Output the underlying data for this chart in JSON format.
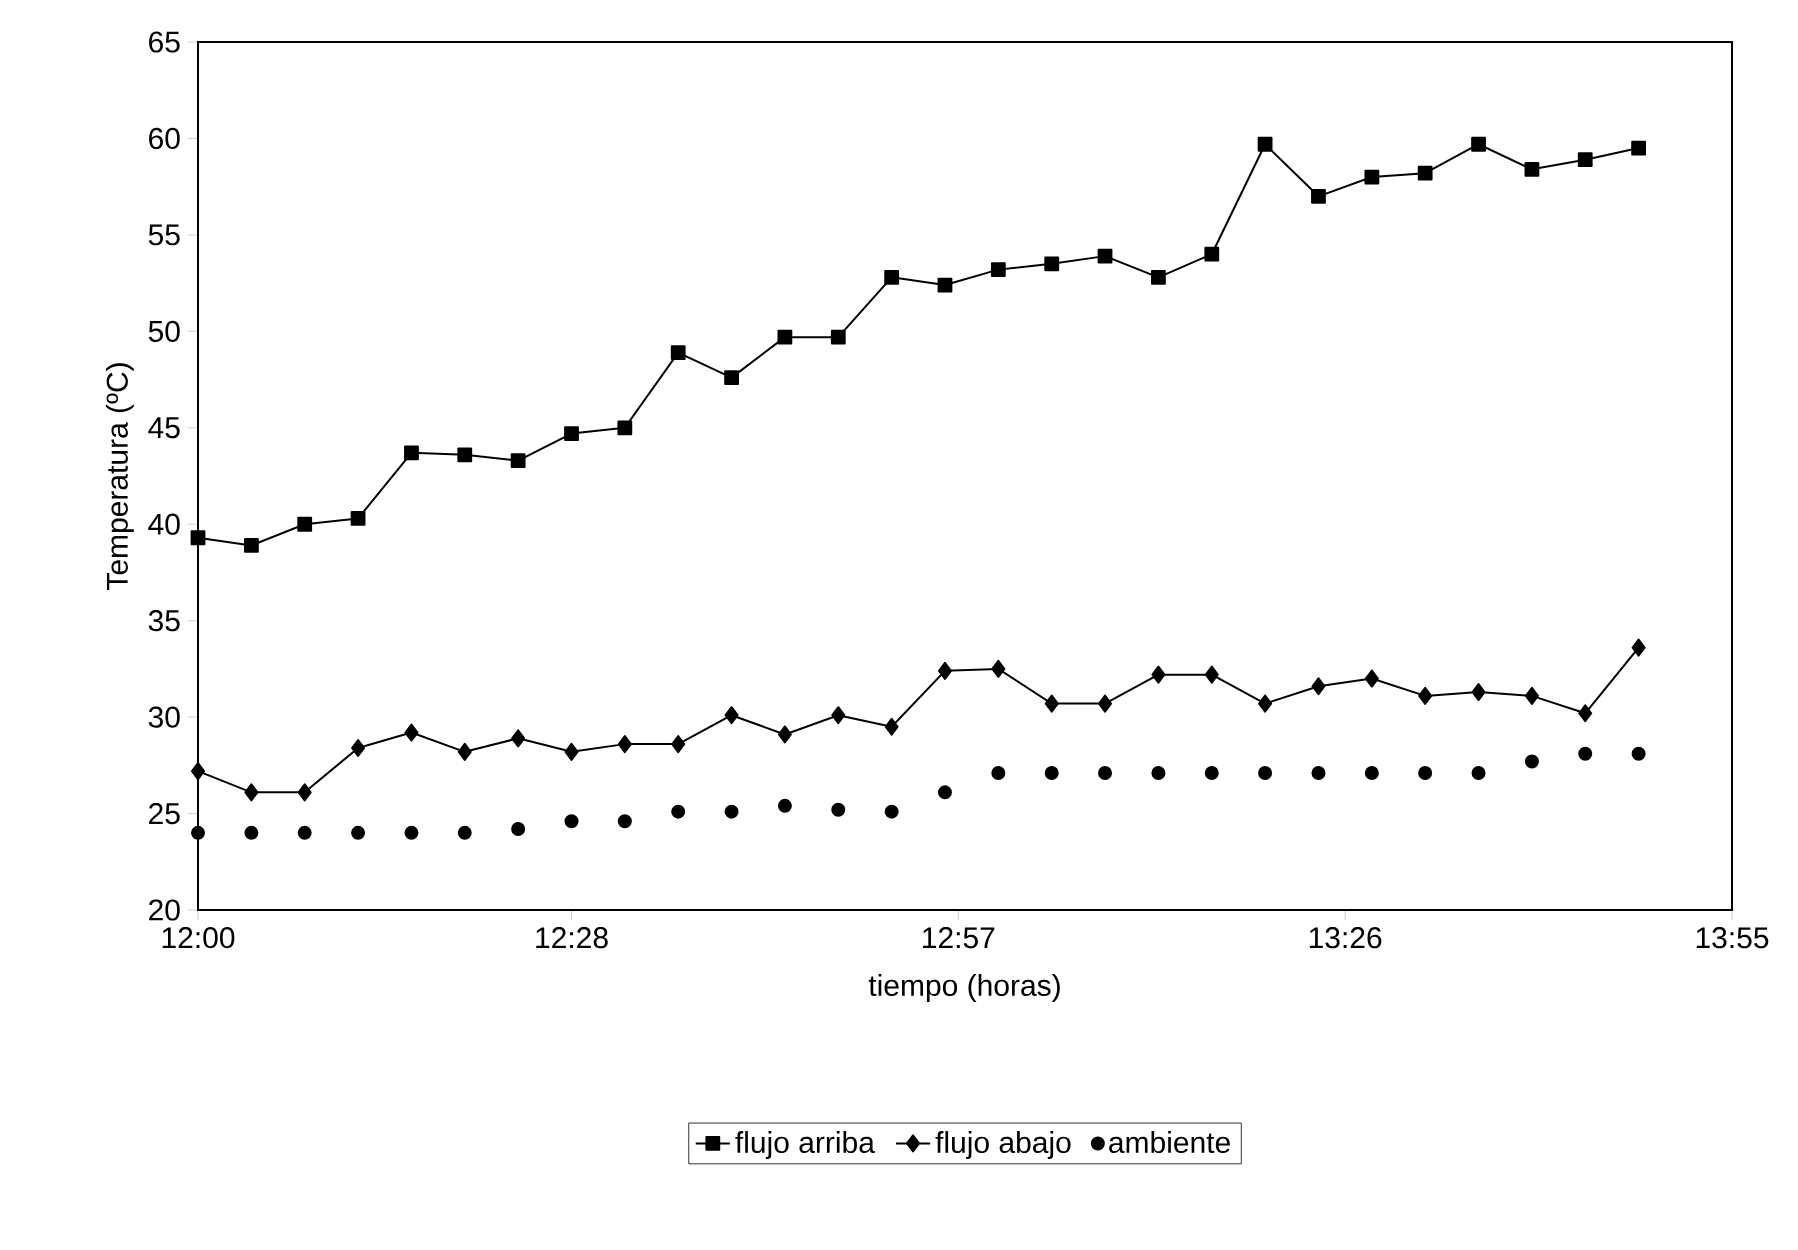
{
  "chart_data": {
    "type": "line",
    "xlabel": "tiempo (horas)",
    "ylabel": "Temperatura (ºC)",
    "x": [
      12.0,
      12.0667,
      12.1333,
      12.2,
      12.2667,
      12.3333,
      12.4,
      12.4667,
      12.5333,
      12.6,
      12.6667,
      12.7333,
      12.8,
      12.8667,
      12.9333,
      13.0,
      13.0667,
      13.1333,
      13.2,
      13.2667,
      13.3333,
      13.4,
      13.4667,
      13.5333,
      13.6,
      13.6667,
      13.7333,
      13.8
    ],
    "series": [
      {
        "name": "flujo arriba",
        "color": "#000000",
        "marker": "square",
        "values": [
          39.3,
          38.9,
          40.0,
          40.3,
          43.7,
          43.6,
          43.3,
          44.7,
          45.0,
          48.9,
          47.6,
          49.7,
          49.7,
          52.8,
          52.4,
          53.2,
          53.5,
          53.9,
          52.8,
          54.0,
          59.7,
          57.0,
          58.0,
          58.2,
          59.7,
          58.4,
          58.9,
          59.5
        ]
      },
      {
        "name": "flujo abajo",
        "color": "#000000",
        "marker": "diamond",
        "values": [
          27.2,
          26.1,
          26.1,
          28.4,
          29.2,
          28.2,
          28.9,
          28.2,
          28.6,
          28.6,
          30.1,
          29.1,
          30.1,
          29.5,
          32.4,
          32.5,
          30.7,
          30.7,
          32.2,
          32.2,
          30.7,
          31.6,
          32.0,
          31.1,
          31.3,
          31.1,
          30.2,
          33.6
        ]
      },
      {
        "name": "ambiente",
        "color": "#000000",
        "type": "scatter",
        "marker": "circle",
        "values": [
          24.0,
          24.0,
          24.0,
          24.0,
          24.0,
          24.0,
          24.2,
          24.6,
          24.6,
          25.1,
          25.1,
          25.4,
          25.2,
          25.1,
          26.1,
          27.1,
          27.1,
          27.1,
          27.1,
          27.1,
          27.1,
          27.1,
          27.1,
          27.1,
          27.1,
          27.7,
          28.1,
          28.1
        ]
      }
    ],
    "xlim": [
      12,
      13.9167
    ],
    "xticks": [
      {
        "value": 12,
        "label": "12:00"
      },
      {
        "value": 12.4667,
        "label": "12:28"
      },
      {
        "value": 12.95,
        "label": "12:57"
      },
      {
        "value": 13.4333,
        "label": "13:26"
      },
      {
        "value": 13.9167,
        "label": "13:55"
      }
    ],
    "ylim": [
      20,
      65
    ],
    "yticks": [
      20,
      25,
      30,
      35,
      40,
      45,
      50,
      55,
      60,
      65
    ],
    "legend": "bottom",
    "line_style": "solid"
  }
}
